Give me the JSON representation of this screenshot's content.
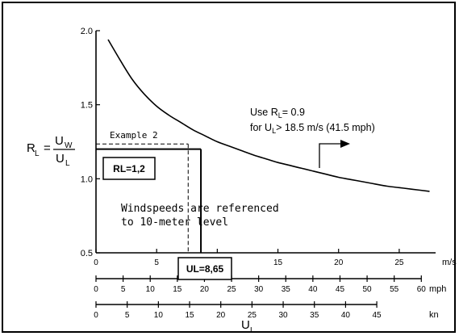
{
  "chart_data": {
    "type": "line",
    "title": "",
    "x": [
      1,
      2,
      3,
      4,
      5,
      6,
      7,
      8,
      9,
      10,
      11,
      12,
      13,
      14,
      15,
      16,
      17,
      18,
      19,
      20,
      21,
      22,
      23,
      24,
      25,
      26,
      27.5
    ],
    "series": [
      {
        "values": [
          1.94,
          1.8,
          1.67,
          1.57,
          1.49,
          1.43,
          1.38,
          1.33,
          1.29,
          1.25,
          1.22,
          1.19,
          1.16,
          1.135,
          1.11,
          1.09,
          1.07,
          1.05,
          1.03,
          1.01,
          0.995,
          0.98,
          0.965,
          0.95,
          0.94,
          0.93,
          0.915
        ]
      }
    ],
    "xlim": [
      0,
      28
    ],
    "ylim": [
      0.5,
      2.0
    ],
    "y_ticks": [
      "0.5",
      "1.0",
      "1.5",
      "2.0"
    ],
    "x_ticks_ms": [
      "0",
      "5",
      "10",
      "15",
      "20",
      "25"
    ],
    "x_unit_ms": "m/s",
    "mph_ticks": [
      "0",
      "5",
      "10",
      "15",
      "20",
      "25",
      "30",
      "35",
      "40",
      "45",
      "50",
      "55",
      "60"
    ],
    "mph_unit": "mph",
    "kn_ticks": [
      "0",
      "5",
      "10",
      "15",
      "20",
      "25",
      "30",
      "35",
      "40",
      "45"
    ],
    "kn_unit": "kn",
    "ylabel": {
      "lhs": "R",
      "lhs_sub": "L",
      "eq": "=",
      "num": "U",
      "num_sub": "W",
      "den": "U",
      "den_sub": "L"
    },
    "xlabel": {
      "main": "U",
      "sub": "L"
    },
    "annotations": {
      "example": "Example 2",
      "use_line1": "Use R",
      "use_line1_sub": "L",
      "use_line1_rest": "= 0.9",
      "use_line2": "for U",
      "use_line2_sub": "L",
      "use_line2_rest": "> 18.5 m/s (41.5 mph)",
      "windspeed_line1": "Windspeeds are referenced",
      "windspeed_line2": "to 10-meter level",
      "rl_box": "RL=1,2",
      "ul_box": "UL=8,65"
    },
    "example_point": {
      "x_dashed": 7.6,
      "y_dashed": 1.235,
      "x_solid": 8.65,
      "y_solid": 1.2
    },
    "grid": false,
    "legend": "none"
  }
}
